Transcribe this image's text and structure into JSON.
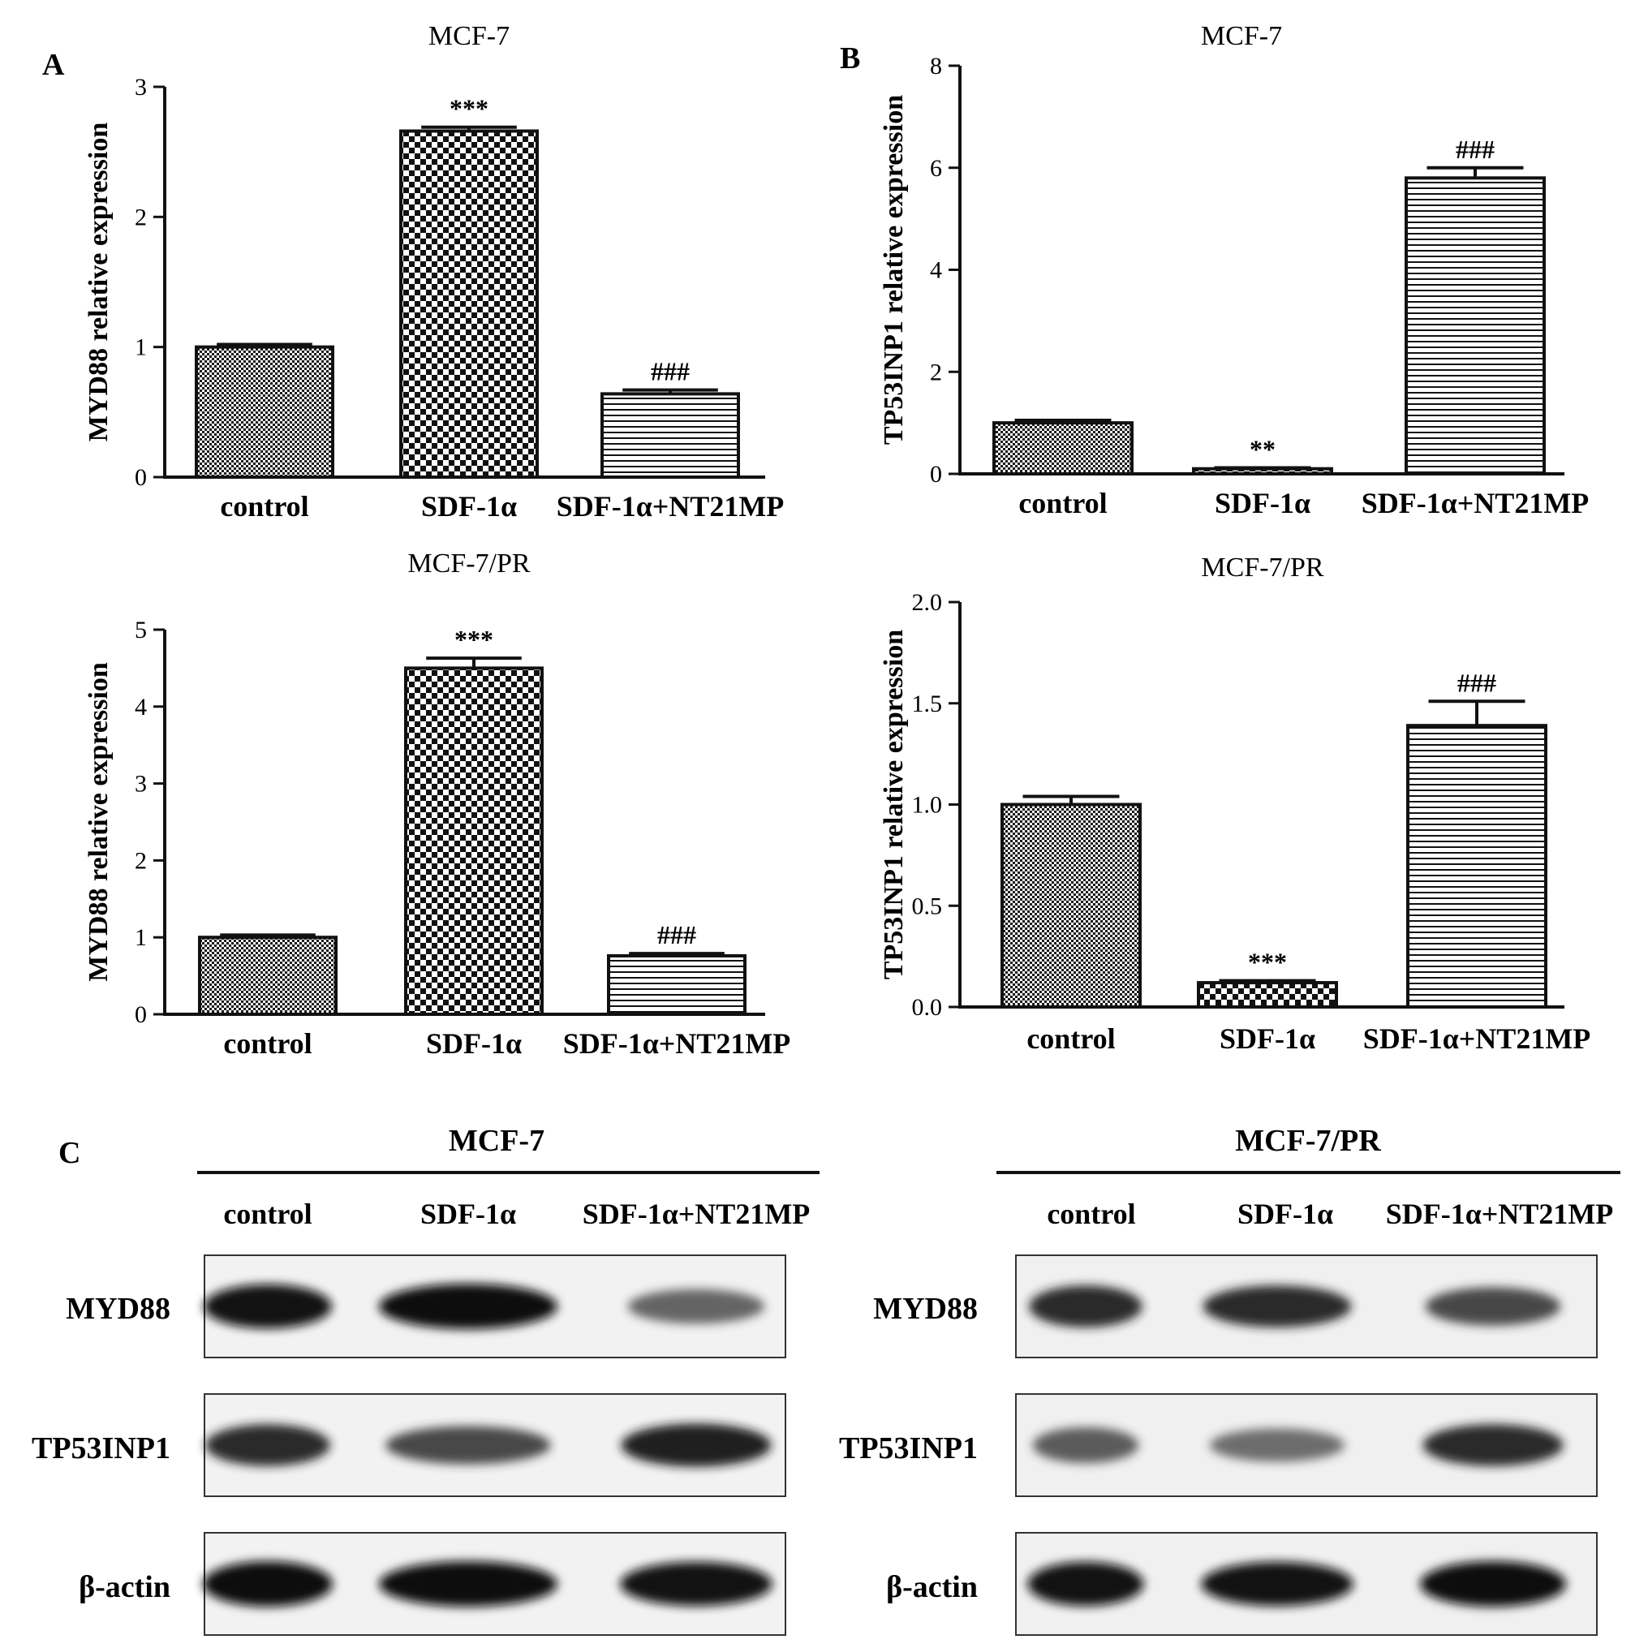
{
  "panels": {
    "a": "A",
    "b": "B",
    "c": "C"
  },
  "chart_data": [
    {
      "id": "A1",
      "type": "bar",
      "title": "MCF-7",
      "ylabel": "MYD88 relative expression",
      "xlabel": "",
      "categories": [
        "control",
        "SDF-1α",
        "SDF-1α+NT21MP"
      ],
      "values": [
        1.0,
        2.66,
        0.64
      ],
      "errors": [
        0.02,
        0.03,
        0.03
      ],
      "significance": [
        "",
        "***",
        "###"
      ],
      "patterns": [
        "fine",
        "checker",
        "hlines"
      ],
      "ylim": [
        0,
        3
      ],
      "yticks": [
        "0",
        "1",
        "2",
        "3"
      ],
      "grid": false
    },
    {
      "id": "A2",
      "type": "bar",
      "title": "MCF-7/PR",
      "ylabel": "MYD88 relative expression",
      "xlabel": "",
      "categories": [
        "control",
        "SDF-1α",
        "SDF-1α+NT21MP"
      ],
      "values": [
        1.0,
        4.5,
        0.76
      ],
      "errors": [
        0.03,
        0.13,
        0.03
      ],
      "significance": [
        "",
        "***",
        "###"
      ],
      "patterns": [
        "fine",
        "checker",
        "hlines"
      ],
      "ylim": [
        0,
        5
      ],
      "yticks": [
        "0",
        "1",
        "2",
        "3",
        "4",
        "5"
      ],
      "grid": false
    },
    {
      "id": "B1",
      "type": "bar",
      "title": "MCF-7",
      "ylabel": "TP53INP1 relative expression",
      "xlabel": "",
      "categories": [
        "control",
        "SDF-1α",
        "SDF-1α+NT21MP"
      ],
      "values": [
        1.0,
        0.1,
        5.8
      ],
      "errors": [
        0.05,
        0.02,
        0.2
      ],
      "significance": [
        "",
        "**",
        "###"
      ],
      "patterns": [
        "fine",
        "checker",
        "hlines"
      ],
      "ylim": [
        0,
        8
      ],
      "yticks": [
        "0",
        "2",
        "4",
        "6",
        "8"
      ],
      "grid": false
    },
    {
      "id": "B2",
      "type": "bar",
      "title": "MCF-7/PR",
      "ylabel": "TP53INP1 relative expression",
      "xlabel": "",
      "categories": [
        "control",
        "SDF-1α",
        "SDF-1α+NT21MP"
      ],
      "values": [
        1.0,
        0.12,
        1.39
      ],
      "errors": [
        0.04,
        0.01,
        0.12
      ],
      "significance": [
        "",
        "***",
        "###"
      ],
      "patterns": [
        "fine",
        "checker",
        "hlines"
      ],
      "ylim": [
        0,
        2.0
      ],
      "yticks": [
        "0.0",
        "0.5",
        "1.0",
        "1.5",
        "2.0"
      ],
      "grid": false
    }
  ],
  "blots": {
    "groups": [
      "MCF-7",
      "MCF-7/PR"
    ],
    "lanes": [
      "control",
      "SDF-1α",
      "SDF-1α+NT21MP"
    ],
    "proteins": [
      "MYD88",
      "TP53INP1",
      "β-actin"
    ],
    "intensity": {
      "MCF-7": [
        [
          0.95,
          1.0,
          0.55
        ],
        [
          0.85,
          0.7,
          0.9
        ],
        [
          1.0,
          1.0,
          0.95
        ]
      ],
      "MCF-7/PR": [
        [
          0.85,
          0.85,
          0.7
        ],
        [
          0.6,
          0.5,
          0.85
        ],
        [
          0.95,
          0.95,
          1.0
        ]
      ]
    }
  }
}
